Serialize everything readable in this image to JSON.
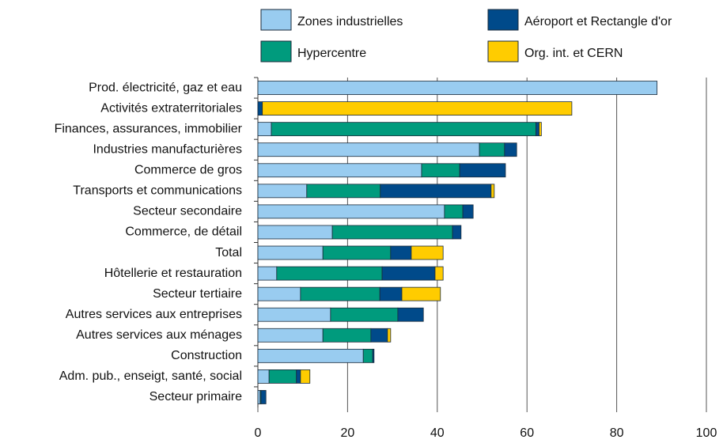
{
  "chart_data": {
    "type": "stacked_bar_horizontal",
    "categories": [
      "Prod. électricité, gaz et eau",
      "Activités extraterritoriales",
      "Finances, assurances, immobilier",
      "Industries manufacturières",
      "Commerce de gros",
      "Transports et communications",
      "Secteur secondaire",
      "Commerce, de détail",
      "Total",
      "Hôtellerie et restauration",
      "Secteur tertiaire",
      "Autres services aux entreprises",
      "Autres services aux ménages",
      "Construction",
      "Adm. pub., enseigt, santé, social",
      "Secteur primaire"
    ],
    "series": [
      {
        "name": "Zones industrielles",
        "color": "#99ccf0",
        "values": [
          89,
          0,
          3,
          49.4,
          36.5,
          10.9,
          41.6,
          16.6,
          14.5,
          4.2,
          9.5,
          16.2,
          14.5,
          23.5,
          2.5,
          0.5
        ]
      },
      {
        "name": "Hypercentre",
        "color": "#009b7d",
        "values": [
          0,
          0,
          59,
          5.6,
          8.5,
          16.4,
          4.1,
          26.8,
          15.1,
          23.5,
          17.7,
          15,
          10.7,
          2.1,
          6.1,
          0.2
        ]
      },
      {
        "name": "Aéroport et Rectangle d'or",
        "color": "#004a8a",
        "values": [
          0,
          1,
          0.7,
          2.7,
          10.2,
          24.7,
          2.3,
          1.9,
          4.6,
          11.8,
          4.9,
          5.7,
          3.7,
          0.3,
          0.9,
          1.1
        ]
      },
      {
        "name": "Org. int. et CERN",
        "color": "#ffcc00",
        "values": [
          0,
          69,
          0.5,
          0,
          0,
          0.7,
          0,
          0,
          7.1,
          1.8,
          8.6,
          0,
          0.7,
          0,
          2.1,
          0
        ]
      }
    ],
    "xlim": [
      0,
      100
    ],
    "xticks": [
      0,
      20,
      40,
      60,
      80,
      100
    ],
    "grid": true
  }
}
